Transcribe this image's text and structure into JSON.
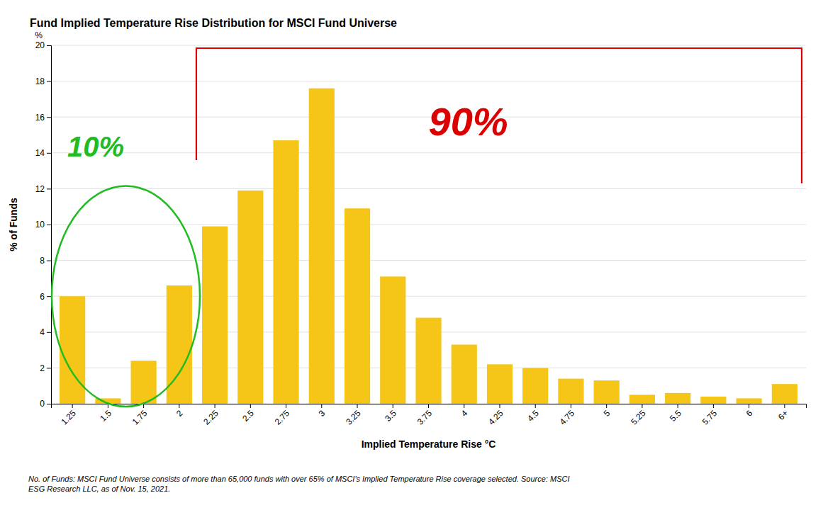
{
  "chart_data": {
    "type": "bar",
    "title": "Fund Implied Temperature Rise Distribution for MSCI Fund Universe",
    "x_label": "Implied Temperature Rise °C",
    "y_label": "% of Funds",
    "categories": [
      "1.25",
      "1.5",
      "1.75",
      "2",
      "2.25",
      "2.5",
      "2.75",
      "3",
      "3.25",
      "3.5",
      "3.75",
      "4",
      "4.25",
      "4.5",
      "4.75",
      "5",
      "5.25",
      "5.5",
      "5.75",
      "6",
      "6+"
    ],
    "values": [
      6.0,
      0.3,
      2.4,
      6.6,
      9.9,
      11.9,
      14.7,
      17.6,
      10.9,
      7.1,
      4.8,
      3.3,
      2.2,
      2.0,
      1.4,
      1.3,
      0.5,
      0.6,
      0.4,
      0.3,
      1.1
    ],
    "color": "#F5C518",
    "ylim": [
      0,
      20
    ],
    "yticks": [
      0,
      2,
      4,
      6,
      8,
      10,
      12,
      14,
      16,
      18,
      20
    ],
    "grid": true,
    "annotations": [
      {
        "text": "10%",
        "color": "#22BB22"
      },
      {
        "text": "90%",
        "color": "#DD0000"
      },
      {
        "text": "%"
      }
    ],
    "footnote": "No. of Funds: MSCI Fund Universe consists of more than 65,000 funds with over 65% of MSCI's Implied Temperature Rise coverage selected. Source: MSCI\nESG Research LLC, as of Nov. 15, 2021."
  }
}
